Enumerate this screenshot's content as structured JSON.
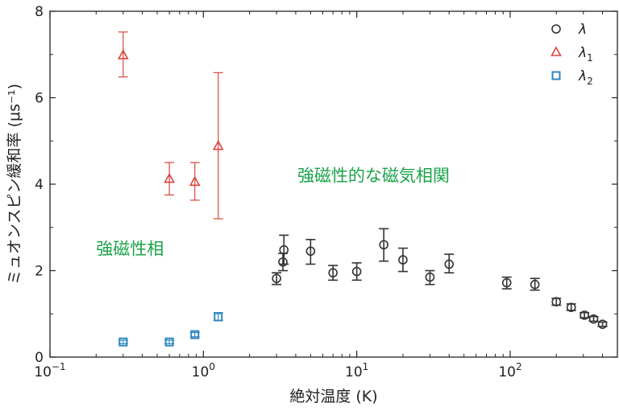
{
  "chart_data": {
    "type": "scatter",
    "xscale": "log",
    "xlim": [
      0.1,
      500
    ],
    "ylim": [
      0,
      8
    ],
    "xlabel": "絶対温度 (K)",
    "ylabel": "ミュオンスピン緩和率 (μs⁻¹)",
    "x_tick_labels": [
      {
        "value": 0.1,
        "base": "10",
        "exp": "−1"
      },
      {
        "value": 1,
        "base": "10",
        "exp": "0"
      },
      {
        "value": 10,
        "base": "10",
        "exp": "1"
      },
      {
        "value": 100,
        "base": "10",
        "exp": "2"
      }
    ],
    "y_ticks": [
      0,
      2,
      4,
      6,
      8
    ],
    "legend_position": "top-right",
    "series": [
      {
        "name": "λ",
        "sub": "",
        "marker": "circle",
        "color": "#333333",
        "points": [
          {
            "x": 3.0,
            "y": 1.82,
            "lo": 1.68,
            "hi": 1.95
          },
          {
            "x": 3.3,
            "y": 2.2,
            "lo": 2.0,
            "hi": 2.4
          },
          {
            "x": 3.35,
            "y": 2.48,
            "lo": 2.15,
            "hi": 2.82
          },
          {
            "x": 5.0,
            "y": 2.45,
            "lo": 2.15,
            "hi": 2.72
          },
          {
            "x": 7.0,
            "y": 1.95,
            "lo": 1.78,
            "hi": 2.12
          },
          {
            "x": 10.0,
            "y": 1.98,
            "lo": 1.78,
            "hi": 2.18
          },
          {
            "x": 15.0,
            "y": 2.6,
            "lo": 2.22,
            "hi": 2.97
          },
          {
            "x": 20.0,
            "y": 2.25,
            "lo": 1.98,
            "hi": 2.52
          },
          {
            "x": 30.0,
            "y": 1.85,
            "lo": 1.68,
            "hi": 2.0
          },
          {
            "x": 40.0,
            "y": 2.15,
            "lo": 1.95,
            "hi": 2.38
          },
          {
            "x": 95.0,
            "y": 1.72,
            "lo": 1.58,
            "hi": 1.85
          },
          {
            "x": 145.0,
            "y": 1.68,
            "lo": 1.55,
            "hi": 1.82
          },
          {
            "x": 200.0,
            "y": 1.28,
            "lo": 1.2,
            "hi": 1.36
          },
          {
            "x": 250.0,
            "y": 1.15,
            "lo": 1.08,
            "hi": 1.23
          },
          {
            "x": 305.0,
            "y": 0.97,
            "lo": 0.91,
            "hi": 1.03
          },
          {
            "x": 350.0,
            "y": 0.88,
            "lo": 0.83,
            "hi": 0.94
          },
          {
            "x": 400.0,
            "y": 0.76,
            "lo": 0.71,
            "hi": 0.81
          }
        ]
      },
      {
        "name": "λ",
        "sub": "1",
        "marker": "triangle",
        "color": "#d9453c",
        "points": [
          {
            "x": 0.3,
            "y": 6.98,
            "lo": 6.48,
            "hi": 7.52
          },
          {
            "x": 0.6,
            "y": 4.12,
            "lo": 3.75,
            "hi": 4.5
          },
          {
            "x": 0.88,
            "y": 4.05,
            "lo": 3.63,
            "hi": 4.5
          },
          {
            "x": 1.25,
            "y": 4.88,
            "lo": 3.2,
            "hi": 6.58
          }
        ]
      },
      {
        "name": "λ",
        "sub": "2",
        "marker": "square",
        "color": "#2e86c1",
        "points": [
          {
            "x": 0.3,
            "y": 0.35,
            "lo": 0.31,
            "hi": 0.39
          },
          {
            "x": 0.6,
            "y": 0.35,
            "lo": 0.31,
            "hi": 0.39
          },
          {
            "x": 0.88,
            "y": 0.52,
            "lo": 0.47,
            "hi": 0.57
          },
          {
            "x": 1.25,
            "y": 0.93,
            "lo": 0.85,
            "hi": 1.03
          }
        ]
      }
    ],
    "annotations": [
      {
        "text": "強磁性的な磁気相関",
        "x": 4.1,
        "y": 4.2
      },
      {
        "text": "強磁性相",
        "x": 0.2,
        "y": 2.5
      }
    ]
  }
}
